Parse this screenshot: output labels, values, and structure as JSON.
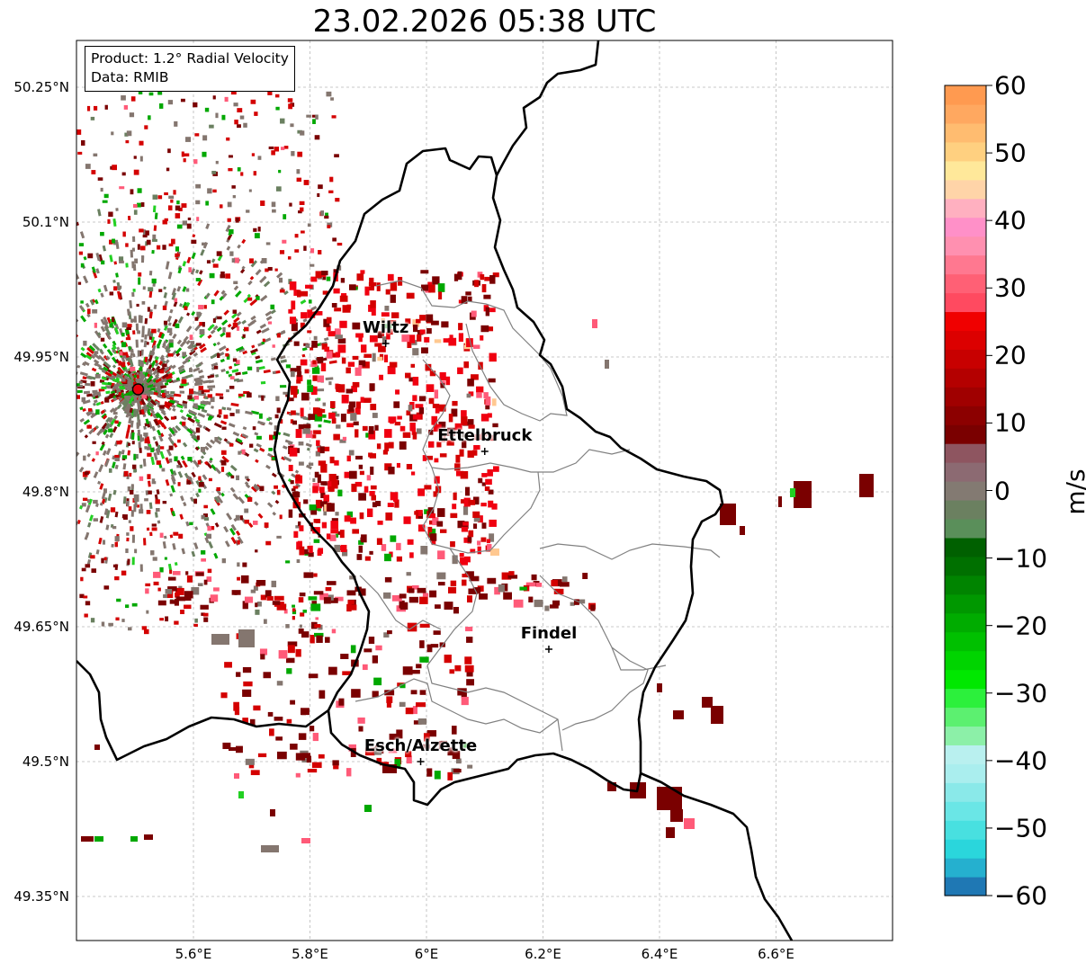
{
  "title": "23.02.2026 05:38 UTC",
  "info_box": {
    "product_line": "Product: 1.2° Radial Velocity",
    "data_line": "Data: RMIB"
  },
  "axes": {
    "lat_ticks": [
      {
        "value": 50.25,
        "label": "50.25°N"
      },
      {
        "value": 50.1,
        "label": "50.1°N"
      },
      {
        "value": 49.95,
        "label": "49.95°N"
      },
      {
        "value": 49.8,
        "label": "49.8°N"
      },
      {
        "value": 49.65,
        "label": "49.65°N"
      },
      {
        "value": 49.5,
        "label": "49.5°N"
      },
      {
        "value": 49.35,
        "label": "49.35°N"
      }
    ],
    "lon_ticks": [
      {
        "value": 5.6,
        "label": "5.6°E"
      },
      {
        "value": 5.8,
        "label": "5.8°E"
      },
      {
        "value": 6.0,
        "label": "6°E"
      },
      {
        "value": 6.2,
        "label": "6.2°E"
      },
      {
        "value": 6.4,
        "label": "6.4°E"
      },
      {
        "value": 6.6,
        "label": "6.6°E"
      }
    ],
    "lat_range": [
      49.3,
      50.3
    ],
    "lon_range": [
      5.4,
      6.8
    ]
  },
  "cities": [
    {
      "name": "Wiltz",
      "lon": 5.93,
      "lat": 49.965
    },
    {
      "name": "Ettelbruck",
      "lon": 6.1,
      "lat": 49.845
    },
    {
      "name": "Findel",
      "lon": 6.21,
      "lat": 49.625
    },
    {
      "name": "Esch/Alzette",
      "lon": 5.99,
      "lat": 49.5
    }
  ],
  "radar_site": {
    "lon": 5.505,
    "lat": 49.914,
    "color": "#e8000b"
  },
  "colorbar": {
    "label": "m/s",
    "min": -60,
    "max": 60,
    "ticks": [
      "60",
      "50",
      "40",
      "30",
      "20",
      "10",
      "0",
      "−10",
      "−20",
      "−30",
      "−40",
      "−50",
      "−60"
    ],
    "colors": [
      "#1f78b4",
      "#25b0cf",
      "#2ad6dc",
      "#48e0e0",
      "#6ae6e6",
      "#8ae9e9",
      "#aaeeee",
      "#b9f0ef",
      "#8cf0a8",
      "#5cf070",
      "#2cf03c",
      "#00e800",
      "#00d400",
      "#00c000",
      "#00ac00",
      "#009800",
      "#008400",
      "#007000",
      "#006000",
      "#5a8f5a",
      "#6b8060",
      "#837a72",
      "#8c6a72",
      "#8e5560",
      "#7a0000",
      "#8c0000",
      "#a00000",
      "#b40000",
      "#c80000",
      "#dc0000",
      "#f00000",
      "#ff4a60",
      "#ff6075",
      "#ff7890",
      "#ff90b0",
      "#ff90c8",
      "#ffb0c0",
      "#ffd4a8",
      "#ffe89a",
      "#ffd080",
      "#ffbc70",
      "#ffa860",
      "#ff9a50"
    ]
  },
  "echo_colors": {
    "dark_red": "#7a0000",
    "red": "#d40000",
    "bright_red": "#f00010",
    "pink": "#ff5a78",
    "grey": "#84766f",
    "grey_green": "#6a8060",
    "green": "#00a800",
    "light_green": "#22d022",
    "peach": "#ffc890"
  }
}
